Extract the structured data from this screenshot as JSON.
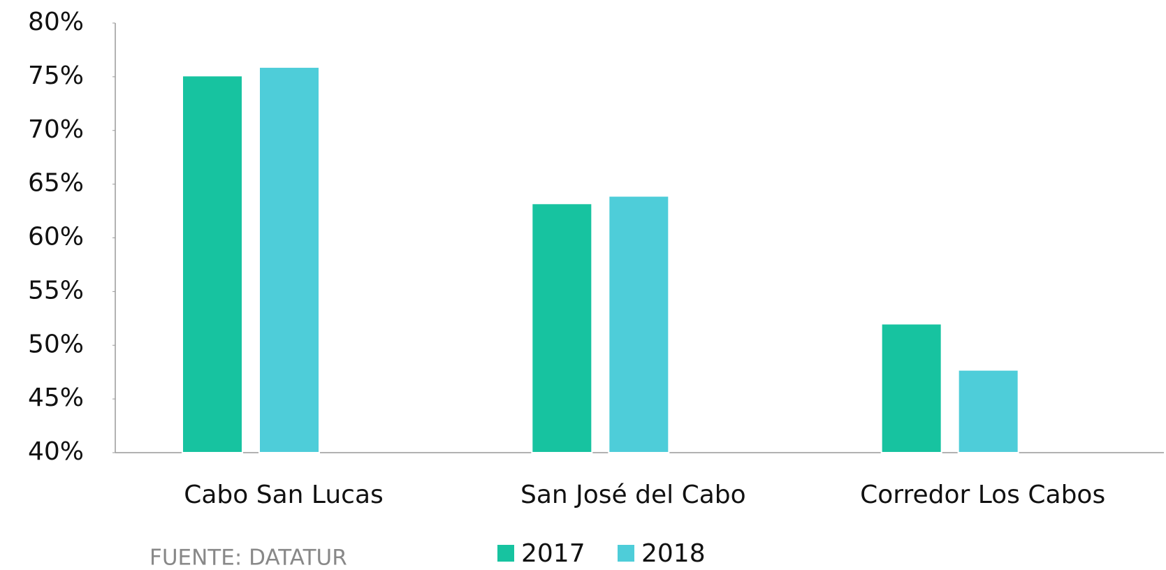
{
  "chart_data": {
    "type": "bar",
    "categories": [
      "Cabo San Lucas",
      "San José del Cabo",
      "Corredor Los Cabos"
    ],
    "series": [
      {
        "name": "2017",
        "color": "#17c3a0",
        "values": [
          75.1,
          63.2,
          52.0
        ]
      },
      {
        "name": "2018",
        "color": "#4ecdd9",
        "values": [
          75.9,
          63.9,
          47.7
        ]
      }
    ],
    "ylim": [
      40,
      80
    ],
    "yticks": [
      {
        "value": 40,
        "label": "40%"
      },
      {
        "value": 45,
        "label": "45%"
      },
      {
        "value": 50,
        "label": "50%"
      },
      {
        "value": 55,
        "label": "55%"
      },
      {
        "value": 60,
        "label": "60%"
      },
      {
        "value": 65,
        "label": "65%"
      },
      {
        "value": 70,
        "label": "70%"
      },
      {
        "value": 75,
        "label": "75%"
      },
      {
        "value": 80,
        "label": "80%"
      }
    ],
    "grid": false,
    "source": "FUENTE: DATATUR"
  }
}
